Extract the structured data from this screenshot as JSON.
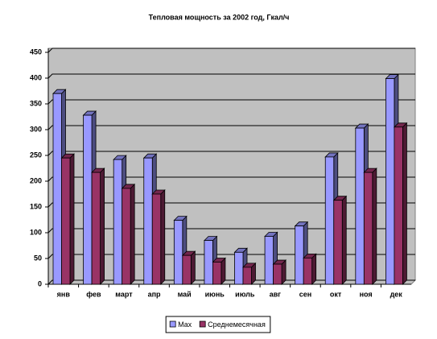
{
  "chart_data": {
    "type": "bar3d",
    "title": "Тепловая мощность за 2002 год, Гкал/ч",
    "categories": [
      "янв",
      "фев",
      "март",
      "апр",
      "май",
      "июнь",
      "июль",
      "авг",
      "сен",
      "окт",
      "ноя",
      "дек"
    ],
    "series": [
      {
        "name": "Max",
        "color": "#9999ff",
        "values": [
          370,
          328,
          242,
          245,
          124,
          85,
          62,
          93,
          113,
          247,
          303,
          399
        ]
      },
      {
        "name": "Среднемесячная",
        "color": "#993366",
        "values": [
          245,
          217,
          186,
          175,
          56,
          43,
          33,
          39,
          51,
          163,
          217,
          305
        ]
      }
    ],
    "ylim": [
      0,
      450
    ],
    "yticks": [
      0,
      50,
      100,
      150,
      200,
      250,
      300,
      350,
      400,
      450
    ],
    "grid": true,
    "legend": "bottom"
  }
}
